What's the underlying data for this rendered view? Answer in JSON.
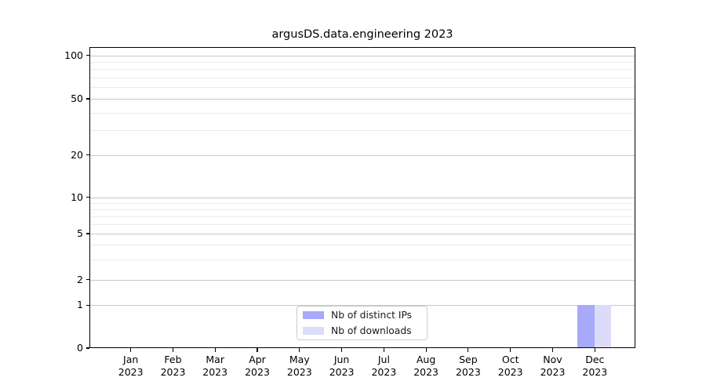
{
  "title": "argusDS.data.engineering 2023",
  "chart_data": {
    "type": "bar",
    "title": "argusDS.data.engineering 2023",
    "categories": [
      "Jan 2023",
      "Feb 2023",
      "Mar 2023",
      "Apr 2023",
      "May 2023",
      "Jun 2023",
      "Jul 2023",
      "Aug 2023",
      "Sep 2023",
      "Oct 2023",
      "Nov 2023",
      "Dec 2023"
    ],
    "series": [
      {
        "name": "Nb of distinct IPs",
        "color": "#a9a9fa",
        "values": [
          0,
          0,
          0,
          0,
          0,
          0,
          0,
          0,
          0,
          0,
          0,
          1
        ]
      },
      {
        "name": "Nb of downloads",
        "color": "#dcdcfa",
        "values": [
          0,
          0,
          0,
          0,
          0,
          0,
          0,
          0,
          0,
          0,
          0,
          1
        ]
      }
    ],
    "xlabel": "",
    "ylabel": "",
    "yscale": "log-like with linear segment to 0",
    "y_major_ticks": [
      0,
      1,
      2,
      5,
      10,
      20,
      50,
      100
    ],
    "y_minor_ticks": [
      3,
      4,
      6,
      7,
      8,
      9,
      30,
      40,
      60,
      70,
      80,
      90
    ],
    "ylim": [
      0,
      114
    ],
    "grid": "horizontal major+minor",
    "legend_position": "lower center inside plot"
  },
  "legend": {
    "items": [
      {
        "label": "Nb of distinct IPs",
        "color": "#a9a9fa"
      },
      {
        "label": "Nb of downloads",
        "color": "#dcdcfa"
      }
    ]
  },
  "colors": {
    "background": "#ffffff",
    "spine": "#000000",
    "grid_major": "#c8c8c8",
    "grid_minor": "#ebebeb",
    "bar_distinct_ips": "#a9a9fa",
    "bar_downloads": "#dcdcfa"
  }
}
